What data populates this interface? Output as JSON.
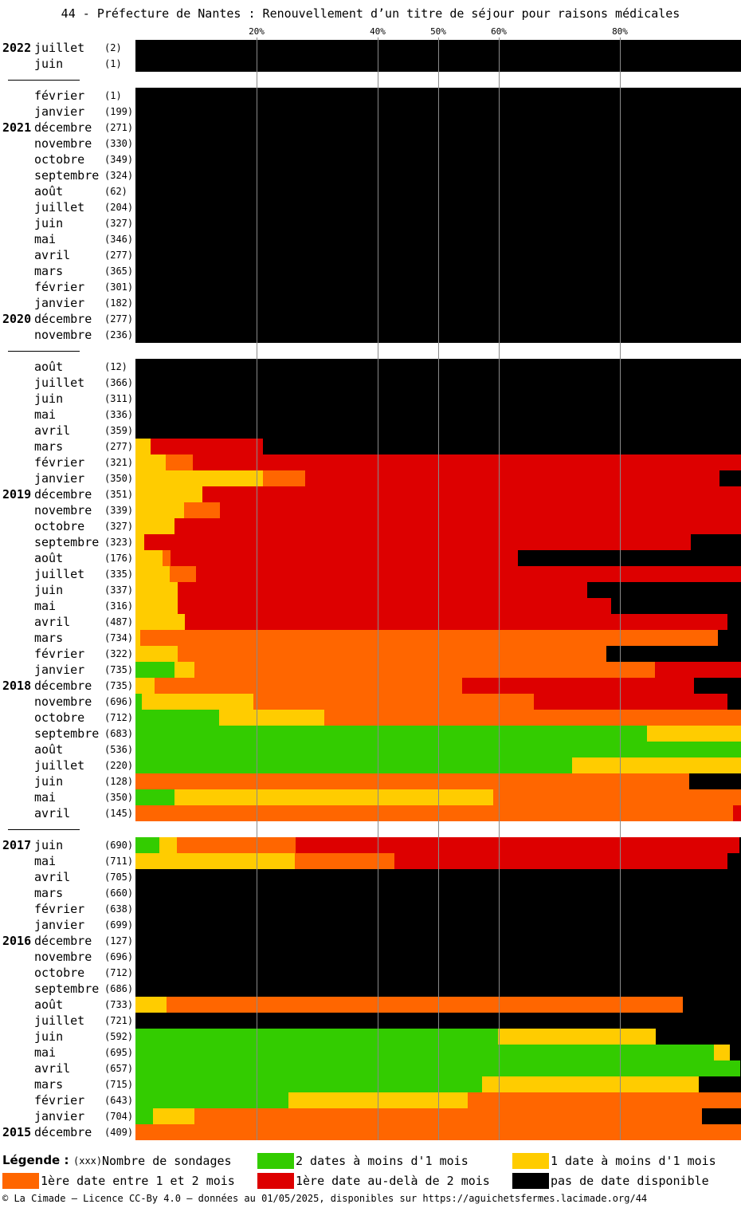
{
  "title": "44 - Préfecture de Nantes : Renouvellement d’un titre de séjour pour raisons médicales",
  "colors": {
    "green": "#33cc00",
    "yellow": "#ffcc00",
    "orange": "#ff6600",
    "red": "#dd0000",
    "black": "#000000"
  },
  "legend": {
    "title": "Légende :",
    "count_marker": "(xxx)",
    "count_label": "Nombre de sondages",
    "items": [
      {
        "label": "2 dates à moins d'1 mois",
        "color": "#33cc00"
      },
      {
        "label": "1 date à moins d'1 mois",
        "color": "#ffcc00"
      },
      {
        "label": "1ère date entre 1 et 2 mois",
        "color": "#ff6600"
      },
      {
        "label": "1ère date au-delà de 2 mois",
        "color": "#dd0000"
      },
      {
        "label": "pas de date disponible",
        "color": "#000000"
      }
    ]
  },
  "footer": "© La Cimade – Licence CC-By 4.0 – données au 01/05/2025, disponibles sur https://aguichetsfermes.lacimade.org/44",
  "chart_data": {
    "type": "bar",
    "orientation": "horizontal-stacked-100",
    "x_ticks": [
      "20%",
      "40%",
      "50%",
      "60%",
      "80%"
    ],
    "tick_values": [
      20,
      40,
      50,
      60,
      80
    ],
    "xlim": [
      0,
      100
    ],
    "series_order": [
      "green",
      "yellow",
      "orange",
      "red",
      "black"
    ],
    "rows": [
      {
        "year": "2022",
        "month": "juillet",
        "count": "(2)",
        "v": [
          0,
          0,
          0,
          0,
          100
        ]
      },
      {
        "month": "juin",
        "count": "(1)",
        "v": [
          0,
          0,
          0,
          0,
          100
        ]
      },
      {
        "gap": true
      },
      {
        "month": "février",
        "count": "(1)",
        "v": [
          0,
          0,
          0,
          0,
          100
        ]
      },
      {
        "month": "janvier",
        "count": "(199)",
        "v": [
          0,
          0,
          0,
          0,
          100
        ]
      },
      {
        "year": "2021",
        "month": "décembre",
        "count": "(271)",
        "v": [
          0,
          0,
          0,
          0,
          100
        ]
      },
      {
        "month": "novembre",
        "count": "(330)",
        "v": [
          0,
          0,
          0,
          0,
          100
        ]
      },
      {
        "month": "octobre",
        "count": "(349)",
        "v": [
          0,
          0,
          0,
          0,
          100
        ]
      },
      {
        "month": "septembre",
        "count": "(324)",
        "v": [
          0,
          0,
          0,
          0,
          100
        ]
      },
      {
        "month": "août",
        "count": "(62)",
        "v": [
          0,
          0,
          0,
          0,
          100
        ]
      },
      {
        "month": "juillet",
        "count": "(204)",
        "v": [
          0,
          0,
          0,
          0,
          100
        ]
      },
      {
        "month": "juin",
        "count": "(327)",
        "v": [
          0,
          0,
          0,
          0,
          100
        ]
      },
      {
        "month": "mai",
        "count": "(346)",
        "v": [
          0,
          0,
          0,
          0,
          100
        ]
      },
      {
        "month": "avril",
        "count": "(277)",
        "v": [
          0,
          0,
          0,
          0,
          100
        ]
      },
      {
        "month": "mars",
        "count": "(365)",
        "v": [
          0,
          0,
          0,
          0,
          100
        ]
      },
      {
        "month": "février",
        "count": "(301)",
        "v": [
          0,
          0,
          0,
          0,
          100
        ]
      },
      {
        "month": "janvier",
        "count": "(182)",
        "v": [
          0,
          0,
          0,
          0,
          100
        ]
      },
      {
        "year": "2020",
        "month": "décembre",
        "count": "(277)",
        "v": [
          0,
          0,
          0,
          0,
          100
        ]
      },
      {
        "month": "novembre",
        "count": "(236)",
        "v": [
          0,
          0,
          0,
          0,
          100
        ]
      },
      {
        "gap": true
      },
      {
        "month": "août",
        "count": "(12)",
        "v": [
          0,
          0,
          0,
          0,
          100
        ]
      },
      {
        "month": "juillet",
        "count": "(366)",
        "v": [
          0,
          0,
          0,
          0,
          100
        ]
      },
      {
        "month": "juin",
        "count": "(311)",
        "v": [
          0,
          0,
          0,
          0,
          100
        ]
      },
      {
        "month": "mai",
        "count": "(336)",
        "v": [
          0,
          0,
          0,
          0,
          100
        ]
      },
      {
        "month": "avril",
        "count": "(359)",
        "v": [
          0,
          0,
          0,
          0,
          100
        ]
      },
      {
        "month": "mars",
        "count": "(277)",
        "v": [
          0,
          2.5,
          0,
          18.5,
          79
        ]
      },
      {
        "month": "février",
        "count": "(321)",
        "v": [
          0,
          5,
          4.5,
          90.5,
          0
        ]
      },
      {
        "month": "janvier",
        "count": "(350)",
        "v": [
          0,
          21,
          7,
          68.5,
          3.5
        ]
      },
      {
        "year": "2019",
        "month": "décembre",
        "count": "(351)",
        "v": [
          0,
          11,
          0,
          89,
          0
        ]
      },
      {
        "month": "novembre",
        "count": "(339)",
        "v": [
          0,
          8,
          6,
          86,
          0
        ]
      },
      {
        "month": "octobre",
        "count": "(327)",
        "v": [
          0,
          6.5,
          0,
          93.5,
          0
        ]
      },
      {
        "month": "septembre",
        "count": "(323)",
        "v": [
          0,
          1.5,
          0,
          90.2,
          8.3
        ]
      },
      {
        "month": "août",
        "count": "(176)",
        "v": [
          0,
          4.5,
          1.3,
          57.4,
          36.8
        ]
      },
      {
        "month": "juillet",
        "count": "(335)",
        "v": [
          0,
          5.7,
          4.3,
          90,
          0
        ]
      },
      {
        "month": "juin",
        "count": "(337)",
        "v": [
          0,
          7,
          0,
          67.6,
          25.4
        ]
      },
      {
        "month": "mai",
        "count": "(316)",
        "v": [
          0,
          7,
          0,
          71.5,
          21.5
        ]
      },
      {
        "month": "avril",
        "count": "(487)",
        "v": [
          0,
          8.2,
          0,
          89.5,
          2.3
        ]
      },
      {
        "month": "mars",
        "count": "(734)",
        "v": [
          0,
          0.8,
          95.4,
          0,
          3.8
        ]
      },
      {
        "month": "février",
        "count": "(322)",
        "v": [
          0,
          7,
          70.8,
          0,
          22.2
        ]
      },
      {
        "month": "janvier",
        "count": "(735)",
        "v": [
          6.5,
          3.3,
          76,
          14.2,
          0
        ]
      },
      {
        "year": "2018",
        "month": "décembre",
        "count": "(735)",
        "v": [
          0,
          3.2,
          50.8,
          38.2,
          7.8
        ]
      },
      {
        "month": "novembre",
        "count": "(696)",
        "v": [
          1,
          18.5,
          46.3,
          31.9,
          2.3
        ]
      },
      {
        "month": "octobre",
        "count": "(712)",
        "v": [
          13.8,
          17.4,
          68.8,
          0,
          0
        ]
      },
      {
        "month": "septembre",
        "count": "(683)",
        "v": [
          84.5,
          15.5,
          0,
          0,
          0
        ]
      },
      {
        "month": "août",
        "count": "(536)",
        "v": [
          100,
          0,
          0,
          0,
          0
        ]
      },
      {
        "month": "juillet",
        "count": "(220)",
        "v": [
          72.1,
          27.9,
          0,
          0,
          0
        ]
      },
      {
        "month": "juin",
        "count": "(128)",
        "v": [
          0,
          0,
          91.4,
          0,
          8.6
        ]
      },
      {
        "month": "mai",
        "count": "(350)",
        "v": [
          6.5,
          52.6,
          40.9,
          0,
          0
        ]
      },
      {
        "month": "avril",
        "count": "(145)",
        "v": [
          0,
          0,
          98.7,
          1.3,
          0
        ]
      },
      {
        "gap": true
      },
      {
        "year": "2017",
        "month": "juin",
        "count": "(690)",
        "v": [
          4,
          2.8,
          19.6,
          73.3,
          0.3
        ]
      },
      {
        "month": "mai",
        "count": "(711)",
        "v": [
          0,
          26.3,
          16.4,
          55,
          2.3
        ]
      },
      {
        "month": "avril",
        "count": "(705)",
        "v": [
          0,
          0,
          0,
          0,
          100
        ]
      },
      {
        "month": "mars",
        "count": "(660)",
        "v": [
          0,
          0,
          0,
          0,
          100
        ]
      },
      {
        "month": "février",
        "count": "(638)",
        "v": [
          0,
          0,
          0,
          0,
          100
        ]
      },
      {
        "month": "janvier",
        "count": "(699)",
        "v": [
          0,
          0,
          0,
          0,
          100
        ]
      },
      {
        "year": "2016",
        "month": "décembre",
        "count": "(127)",
        "v": [
          0,
          0,
          0,
          0,
          100
        ]
      },
      {
        "month": "novembre",
        "count": "(696)",
        "v": [
          0,
          0,
          0,
          0,
          100
        ]
      },
      {
        "month": "octobre",
        "count": "(712)",
        "v": [
          0,
          0,
          0,
          0,
          100
        ]
      },
      {
        "month": "septembre",
        "count": "(686)",
        "v": [
          0,
          0,
          0,
          0,
          100
        ]
      },
      {
        "month": "août",
        "count": "(733)",
        "v": [
          0,
          5.1,
          85.3,
          0,
          9.6
        ]
      },
      {
        "month": "juillet",
        "count": "(721)",
        "v": [
          0,
          0,
          0,
          0,
          100
        ]
      },
      {
        "month": "juin",
        "count": "(592)",
        "v": [
          59.9,
          26,
          0,
          0,
          14.1
        ]
      },
      {
        "month": "mai",
        "count": "(695)",
        "v": [
          95.5,
          2.6,
          0,
          0,
          1.9
        ]
      },
      {
        "month": "avril",
        "count": "(657)",
        "v": [
          99.9,
          0,
          0,
          0,
          0.1
        ]
      },
      {
        "month": "mars",
        "count": "(715)",
        "v": [
          57.2,
          35.8,
          0,
          0,
          7
        ]
      },
      {
        "month": "février",
        "count": "(643)",
        "v": [
          25.3,
          29.6,
          45.1,
          0,
          0
        ]
      },
      {
        "month": "janvier",
        "count": "(704)",
        "v": [
          2.9,
          6.9,
          83.7,
          0,
          6.5
        ]
      },
      {
        "year": "2015",
        "month": "décembre",
        "count": "(409)",
        "v": [
          0,
          0,
          100,
          0,
          0
        ]
      }
    ]
  }
}
